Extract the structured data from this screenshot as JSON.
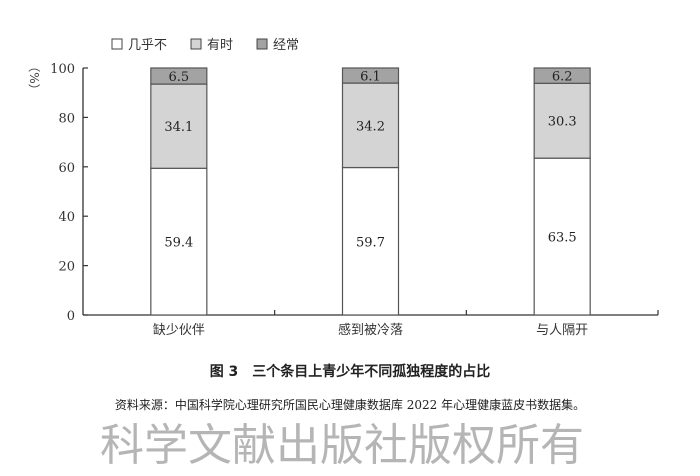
{
  "chart_data": {
    "type": "bar",
    "stacked": true,
    "title": "图 3　三个条目上青少年不同孤独程度的占比",
    "ylabel": "（%）",
    "xlabel": "",
    "ylim": [
      0,
      100
    ],
    "yticks": [
      0,
      20,
      40,
      60,
      80,
      100
    ],
    "categories": [
      "缺少伙伴",
      "感到被冷落",
      "与人隔开"
    ],
    "series": [
      {
        "name": "几乎不",
        "color": "#ffffff",
        "values": [
          59.4,
          59.7,
          63.5
        ]
      },
      {
        "name": "有时",
        "color": "#d4d4d4",
        "values": [
          34.1,
          34.2,
          30.3
        ]
      },
      {
        "name": "经常",
        "color": "#a3a3a3",
        "values": [
          6.5,
          6.1,
          6.2
        ]
      }
    ],
    "legend_position": "top-left",
    "grid": false
  },
  "source": "资料来源：中国科学院心理研究所国民心理健康数据库 2022 年心理健康蓝皮书数据集。",
  "watermark": "科学文献出版社版权所有"
}
